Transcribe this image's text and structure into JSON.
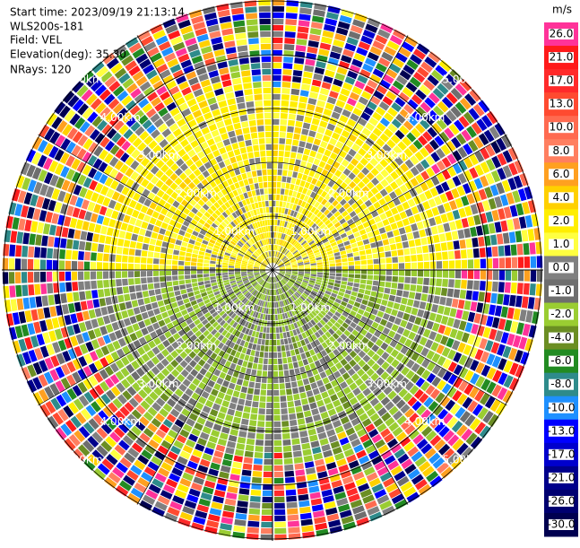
{
  "header": {
    "start_time": "Start time: 2023/09/19 21:13:14",
    "instrument": "WLS200s-181",
    "field": "Field: VEL",
    "elevation": "Elevation(deg): 35.30",
    "nrays": "NRays: 120"
  },
  "colorbar": {
    "unit": "m/s",
    "labels": [
      "26.0",
      "21.0",
      "17.0",
      "13.0",
      "10.0",
      "8.0",
      "6.0",
      "4.0",
      "2.0",
      "1.0",
      "0.0",
      "-1.0",
      "-2.0",
      "-4.0",
      "-6.0",
      "-8.0",
      "-10.0",
      "-13.0",
      "-17.0",
      "-21.0",
      "-26.0",
      "-30.0"
    ],
    "colors": [
      "#ff3399",
      "#ff1a1a",
      "#ff2a2a",
      "#ff4a30",
      "#ff6a50",
      "#ff7f60",
      "#ffa020",
      "#ffd000",
      "#ffee00",
      "#ffff40",
      "#808080",
      "#6e6e6e",
      "#9acd32",
      "#6b8e23",
      "#228b22",
      "#2e8b8b",
      "#1e90ff",
      "#0000ff",
      "#0000cd",
      "#00008b",
      "#000070",
      "#000050"
    ]
  },
  "range_rings": [
    "1.00km",
    "2.00km",
    "3.00km",
    "4.00km",
    "5.00km"
  ]
}
